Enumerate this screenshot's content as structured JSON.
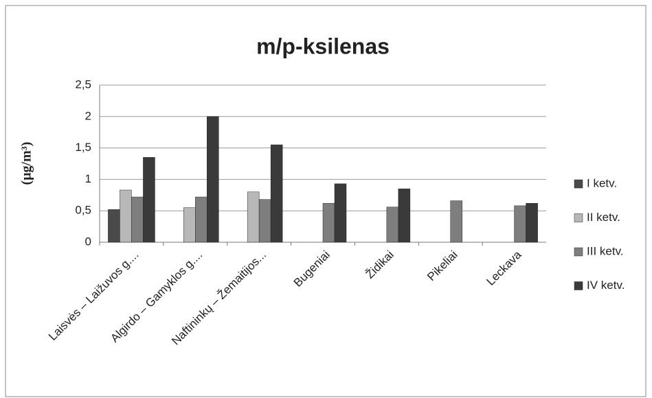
{
  "chart_data": {
    "type": "bar",
    "title": "m/p-ksilenas",
    "y_label": "(μg/m³)",
    "categories": [
      "Laisvės – Laižuvos g....",
      "Algirdo – Gamyklos g....",
      "Naftininkų – Žemaitijos...",
      "Bugeniai",
      "Židikai",
      "Pikeliai",
      "Leckava"
    ],
    "series": [
      {
        "name": "I ketv.",
        "color": "#4a4a4a",
        "values": [
          0.52,
          null,
          null,
          null,
          null,
          null,
          null
        ]
      },
      {
        "name": "II ketv.",
        "color": "#b8b8b8",
        "values": [
          0.83,
          0.55,
          0.8,
          null,
          null,
          null,
          null
        ]
      },
      {
        "name": "III ketv.",
        "color": "#7e7e7e",
        "values": [
          0.72,
          0.72,
          0.68,
          0.62,
          0.56,
          0.66,
          0.58
        ]
      },
      {
        "name": "IV ketv.",
        "color": "#3a3a3a",
        "values": [
          1.35,
          2.0,
          1.55,
          0.93,
          0.85,
          null,
          0.62
        ]
      }
    ],
    "ylim": [
      0,
      2.5
    ],
    "yticks": [
      0,
      {
        "value": 0.5,
        "label": "0,5"
      },
      1,
      {
        "value": 1.5,
        "label": "1,5"
      },
      2,
      {
        "value": 2.5,
        "label": "2,5"
      }
    ],
    "grid": true,
    "legend": "right"
  }
}
